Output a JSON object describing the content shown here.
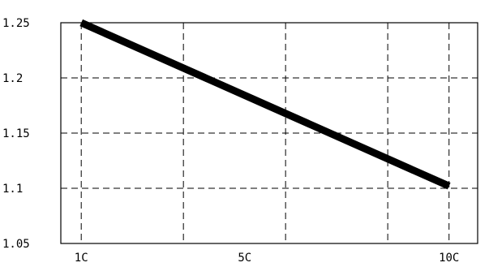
{
  "chart_data": {
    "type": "line",
    "title": "",
    "xlabel": "",
    "ylabel": "",
    "x_tick_labels": [
      {
        "x": 1,
        "label": "1C"
      },
      {
        "x": 5,
        "label": "5C"
      },
      {
        "x": 10,
        "label": "10C"
      }
    ],
    "x_gridlines": [
      1,
      3.5,
      6,
      8.5,
      10
    ],
    "xlim": [
      0.5,
      10.7
    ],
    "y_ticks": [
      1.05,
      1.1,
      1.15,
      1.2,
      1.25
    ],
    "y_tick_labels": [
      "1.05",
      "1.1",
      "1.15",
      "1.2",
      "1.25"
    ],
    "ylim": [
      1.05,
      1.25
    ],
    "grid": true,
    "grid_style": "dashed",
    "series": [
      {
        "x": [
          1,
          10
        ],
        "y": [
          1.25,
          1.102
        ],
        "color": "#000000"
      }
    ]
  }
}
